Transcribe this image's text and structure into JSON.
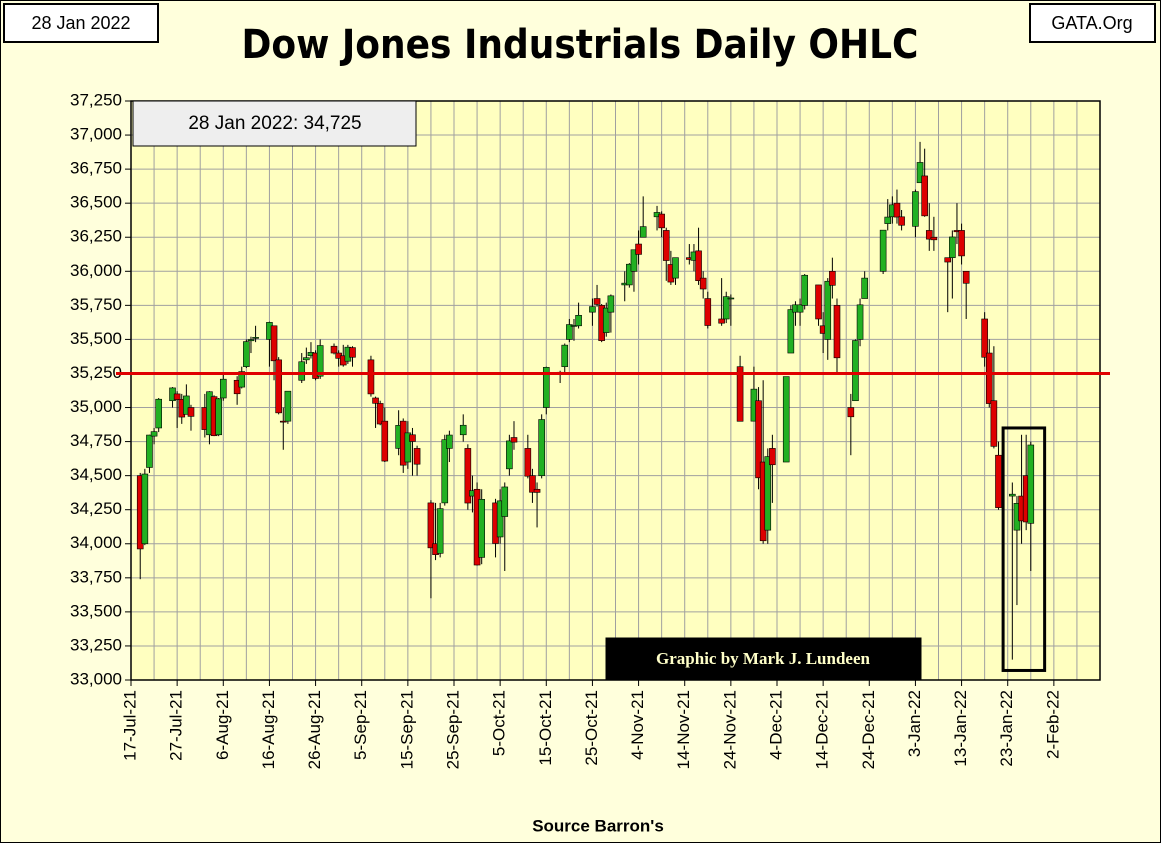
{
  "chart_data": {
    "type": "candlestick",
    "title": "Dow Jones Industrials Daily OHLC",
    "date_label": "28 Jan 2022",
    "site": "GATA.Org",
    "last_label": "28 Jan 2022:  34,725",
    "credit": "Graphic by Mark J. Lundeen",
    "source": "Source Barron's",
    "up_color": "#22b022",
    "down_color": "#dd0000",
    "reference_line": {
      "value": 35250,
      "color": "#e00000"
    },
    "highlight_box": {
      "x": [
        "2022-01-22",
        "2022-01-31"
      ],
      "y": [
        33070,
        34850
      ]
    },
    "xlim": [
      "2021-07-17",
      "2022-02-12"
    ],
    "xticks": [
      {
        "value": "2021-07-17",
        "label": "17-Jul-21"
      },
      {
        "value": "2021-07-27",
        "label": "27-Jul-21"
      },
      {
        "value": "2021-08-06",
        "label": "6-Aug-21"
      },
      {
        "value": "2021-08-16",
        "label": "16-Aug-21"
      },
      {
        "value": "2021-08-26",
        "label": "26-Aug-21"
      },
      {
        "value": "2021-09-05",
        "label": "5-Sep-21"
      },
      {
        "value": "2021-09-15",
        "label": "15-Sep-21"
      },
      {
        "value": "2021-09-25",
        "label": "25-Sep-21"
      },
      {
        "value": "2021-10-05",
        "label": "5-Oct-21"
      },
      {
        "value": "2021-10-15",
        "label": "15-Oct-21"
      },
      {
        "value": "2021-10-25",
        "label": "25-Oct-21"
      },
      {
        "value": "2021-11-04",
        "label": "4-Nov-21"
      },
      {
        "value": "2021-11-14",
        "label": "14-Nov-21"
      },
      {
        "value": "2021-11-24",
        "label": "24-Nov-21"
      },
      {
        "value": "2021-12-04",
        "label": "4-Dec-21"
      },
      {
        "value": "2021-12-14",
        "label": "14-Dec-21"
      },
      {
        "value": "2021-12-24",
        "label": "24-Dec-21"
      },
      {
        "value": "2022-01-03",
        "label": "3-Jan-22"
      },
      {
        "value": "2022-01-13",
        "label": "13-Jan-22"
      },
      {
        "value": "2022-01-23",
        "label": "23-Jan-22"
      },
      {
        "value": "2022-02-02",
        "label": "2-Feb-22"
      }
    ],
    "x_minor_grid": [
      "2021-07-22",
      "2021-08-01",
      "2021-08-11",
      "2021-08-21",
      "2021-08-31",
      "2021-09-10",
      "2021-09-20",
      "2021-09-30",
      "2021-10-10",
      "2021-10-20",
      "2021-10-30",
      "2021-11-09",
      "2021-11-19",
      "2021-11-29",
      "2021-12-09",
      "2021-12-19",
      "2021-12-29",
      "2022-01-08",
      "2022-01-18",
      "2022-01-28",
      "2022-02-07"
    ],
    "ylim": [
      33000,
      37250
    ],
    "yticks": [
      {
        "value": 33000,
        "label": "33,000"
      },
      {
        "value": 33250,
        "label": "33,250"
      },
      {
        "value": 33500,
        "label": "33,500"
      },
      {
        "value": 33750,
        "label": "33,750"
      },
      {
        "value": 34000,
        "label": "34,000"
      },
      {
        "value": 34250,
        "label": "34,250"
      },
      {
        "value": 34500,
        "label": "34,500"
      },
      {
        "value": 34750,
        "label": "34,750"
      },
      {
        "value": 35000,
        "label": "35,000"
      },
      {
        "value": 35250,
        "label": "35,250"
      },
      {
        "value": 35500,
        "label": "35,500"
      },
      {
        "value": 35750,
        "label": "35,750"
      },
      {
        "value": 36000,
        "label": "36,000"
      },
      {
        "value": 36250,
        "label": "36,250"
      },
      {
        "value": 36500,
        "label": "36,500"
      },
      {
        "value": 36750,
        "label": "36,750"
      },
      {
        "value": 37000,
        "label": "37,000"
      },
      {
        "value": 37250,
        "label": "37,250"
      }
    ],
    "grid": true,
    "x": [
      "2021-07-19",
      "2021-07-20",
      "2021-07-21",
      "2021-07-22",
      "2021-07-23",
      "2021-07-26",
      "2021-07-27",
      "2021-07-28",
      "2021-07-29",
      "2021-07-30",
      "2021-08-02",
      "2021-08-03",
      "2021-08-04",
      "2021-08-05",
      "2021-08-06",
      "2021-08-09",
      "2021-08-10",
      "2021-08-11",
      "2021-08-12",
      "2021-08-13",
      "2021-08-16",
      "2021-08-17",
      "2021-08-18",
      "2021-08-19",
      "2021-08-20",
      "2021-08-23",
      "2021-08-24",
      "2021-08-25",
      "2021-08-26",
      "2021-08-27",
      "2021-08-30",
      "2021-08-31",
      "2021-09-01",
      "2021-09-02",
      "2021-09-03",
      "2021-09-07",
      "2021-09-08",
      "2021-09-09",
      "2021-09-10",
      "2021-09-13",
      "2021-09-14",
      "2021-09-15",
      "2021-09-16",
      "2021-09-17",
      "2021-09-20",
      "2021-09-21",
      "2021-09-22",
      "2021-09-23",
      "2021-09-24",
      "2021-09-27",
      "2021-09-28",
      "2021-09-29",
      "2021-09-30",
      "2021-10-01",
      "2021-10-04",
      "2021-10-05",
      "2021-10-06",
      "2021-10-07",
      "2021-10-08",
      "2021-10-11",
      "2021-10-12",
      "2021-10-13",
      "2021-10-14",
      "2021-10-15",
      "2021-10-18",
      "2021-10-19",
      "2021-10-20",
      "2021-10-21",
      "2021-10-22",
      "2021-10-25",
      "2021-10-26",
      "2021-10-27",
      "2021-10-28",
      "2021-10-29",
      "2021-11-01",
      "2021-11-02",
      "2021-11-03",
      "2021-11-04",
      "2021-11-05",
      "2021-11-08",
      "2021-11-09",
      "2021-11-10",
      "2021-11-11",
      "2021-11-12",
      "2021-11-15",
      "2021-11-16",
      "2021-11-17",
      "2021-11-18",
      "2021-11-19",
      "2021-11-22",
      "2021-11-23",
      "2021-11-24",
      "2021-11-26",
      "2021-11-29",
      "2021-11-30",
      "2021-12-01",
      "2021-12-02",
      "2021-12-03",
      "2021-12-06",
      "2021-12-07",
      "2021-12-08",
      "2021-12-09",
      "2021-12-10",
      "2021-12-13",
      "2021-12-14",
      "2021-12-15",
      "2021-12-16",
      "2021-12-17",
      "2021-12-20",
      "2021-12-21",
      "2021-12-22",
      "2021-12-23",
      "2021-12-27",
      "2021-12-28",
      "2021-12-29",
      "2021-12-30",
      "2021-12-31",
      "2022-01-03",
      "2022-01-04",
      "2022-01-05",
      "2022-01-06",
      "2022-01-07",
      "2022-01-10",
      "2022-01-11",
      "2022-01-12",
      "2022-01-13",
      "2022-01-14",
      "2022-01-18",
      "2022-01-19",
      "2022-01-20",
      "2022-01-21",
      "2022-01-24",
      "2022-01-25",
      "2022-01-26",
      "2022-01-27",
      "2022-01-28"
    ],
    "open": [
      34500,
      34000,
      34560,
      34790,
      34850,
      35050,
      35100,
      35060,
      34950,
      35000,
      35000,
      34800,
      35080,
      34800,
      35070,
      35200,
      35150,
      35300,
      35490,
      35510,
      35500,
      35600,
      35350,
      34900,
      34900,
      35200,
      35350,
      35380,
      35400,
      35230,
      35450,
      35400,
      35380,
      35340,
      35440,
      35350,
      35070,
      35030,
      34900,
      34700,
      34900,
      34600,
      34800,
      34700,
      34300,
      34000,
      33930,
      34300,
      34700,
      34800,
      34700,
      34350,
      34400,
      33900,
      34300,
      34050,
      34200,
      34550,
      34780,
      34700,
      34500,
      34400,
      34500,
      35000,
      35250,
      35300,
      35500,
      35600,
      35600,
      35700,
      35800,
      35750,
      35550,
      35700,
      35900,
      35900,
      36000,
      36200,
      36250,
      36400,
      36420,
      36300,
      36050,
      35950,
      36100,
      36080,
      36150,
      35950,
      35800,
      35650,
      35650,
      35800,
      35300,
      34900,
      35050,
      34600,
      34100,
      34700,
      34600,
      35400,
      35700,
      35700,
      35750,
      35900,
      35600,
      35500,
      36000,
      35750,
      35000,
      35050,
      35500,
      35800,
      36000,
      36350,
      36400,
      36500,
      36400,
      36330,
      36650,
      36700,
      36300,
      36250,
      36100,
      36100,
      36300,
      36300,
      36000,
      35650,
      35400,
      35050,
      34650,
      34350,
      34100,
      34350,
      34500,
      34150
    ],
    "high": [
      34520,
      34550,
      34800,
      34850,
      35070,
      35150,
      35120,
      35100,
      35170,
      35020,
      35100,
      35120,
      35090,
      35070,
      35250,
      35230,
      35300,
      35500,
      35520,
      35600,
      35630,
      35600,
      35370,
      35000,
      35120,
      35400,
      35440,
      35480,
      35420,
      35500,
      35470,
      35420,
      35460,
      35460,
      35450,
      35380,
      35080,
      35050,
      35000,
      34980,
      34920,
      34900,
      34850,
      34720,
      34320,
      34300,
      34300,
      34800,
      34830,
      34950,
      34730,
      34500,
      34450,
      34400,
      34330,
      34400,
      34450,
      34800,
      34900,
      34800,
      34550,
      34450,
      34950,
      35300,
      35270,
      35470,
      35650,
      35650,
      35770,
      35800,
      35900,
      35760,
      35770,
      35830,
      36000,
      36060,
      36160,
      36300,
      36550,
      36480,
      36440,
      36320,
      36150,
      36100,
      36200,
      36200,
      36320,
      36000,
      35850,
      35950,
      35850,
      35830,
      35380,
      35300,
      35150,
      35200,
      34700,
      34800,
      35200,
      35750,
      35780,
      35800,
      35980,
      35900,
      35700,
      35950,
      36100,
      35800,
      35100,
      35500,
      35800,
      36000,
      36300,
      36530,
      36550,
      36600,
      36450,
      36600,
      36950,
      36900,
      36500,
      36400,
      36100,
      36300,
      36500,
      36350,
      36000,
      35700,
      35500,
      35450,
      34750,
      34450,
      34350,
      34800,
      34800,
      34750
    ],
    "low": [
      33740,
      33990,
      34520,
      34730,
      34820,
      35000,
      34850,
      34880,
      34950,
      34830,
      34780,
      34730,
      34790,
      34790,
      35050,
      35020,
      35140,
      35290,
      35400,
      35480,
      35300,
      35200,
      34950,
      34690,
      34880,
      35180,
      35320,
      35360,
      35200,
      35210,
      35390,
      35300,
      35300,
      35320,
      35300,
      35080,
      34850,
      34870,
      34600,
      34650,
      34520,
      34550,
      34500,
      34500,
      33600,
      33880,
      33900,
      34280,
      34600,
      34750,
      34250,
      34230,
      33840,
      33850,
      33900,
      34000,
      33800,
      34500,
      34690,
      34480,
      34300,
      34120,
      34480,
      34950,
      35180,
      35260,
      35480,
      35490,
      35580,
      35600,
      35740,
      35480,
      35520,
      35550,
      35780,
      35880,
      35850,
      36050,
      36250,
      36300,
      36250,
      35930,
      35900,
      35900,
      36050,
      36000,
      35900,
      35800,
      35580,
      35600,
      35620,
      35600,
      34900,
      34900,
      34400,
      34000,
      34000,
      34300,
      34600,
      35400,
      35600,
      35600,
      35720,
      35600,
      35400,
      35350,
      35800,
      35250,
      34650,
      35050,
      35450,
      35800,
      35980,
      36300,
      36350,
      36350,
      36300,
      36250,
      36650,
      36400,
      36150,
      36150,
      35700,
      35800,
      36200,
      36050,
      35650,
      35300,
      35000,
      34700,
      34250,
      33150,
      33550,
      34000,
      34100,
      33800
    ],
    "close": [
      33962,
      34512,
      34798,
      34823,
      35061,
      35144,
      35058,
      34930,
      35085,
      34935,
      34838,
      35116,
      34793,
      35064,
      35208,
      35101,
      35264,
      35484,
      35499,
      35515,
      35625,
      35343,
      34961,
      34894,
      35120,
      35336,
      35366,
      35405,
      35213,
      35455,
      35400,
      35361,
      35312,
      35443,
      35369,
      35100,
      35031,
      34879,
      34607,
      34869,
      34577,
      34814,
      34751,
      34584,
      33970,
      33920,
      34258,
      34764,
      34798,
      34870,
      34299,
      34390,
      33844,
      34326,
      34002,
      34315,
      34417,
      34755,
      34746,
      34496,
      34378,
      34377,
      34912,
      35295,
      35259,
      35458,
      35609,
      35603,
      35677,
      35741,
      35757,
      35491,
      35730,
      35820,
      35913,
      36052,
      36158,
      36124,
      36328,
      36432,
      36319,
      36079,
      35921,
      36100,
      36087,
      36142,
      35931,
      35870,
      35602,
      35619,
      35814,
      35804,
      34899,
      35135,
      34484,
      34022,
      34640,
      34580,
      35227,
      35719,
      35754,
      35754,
      35971,
      35650,
      35544,
      35927,
      35897,
      35365,
      34932,
      35492,
      35754,
      35950,
      36302,
      36398,
      36488,
      36398,
      36338,
      36585,
      36799,
      36407,
      36236,
      36231,
      36068,
      36252,
      36290,
      36113,
      35912,
      35369,
      35029,
      34715,
      34265,
      34364,
      34297,
      34168,
      34160,
      34725
    ]
  }
}
